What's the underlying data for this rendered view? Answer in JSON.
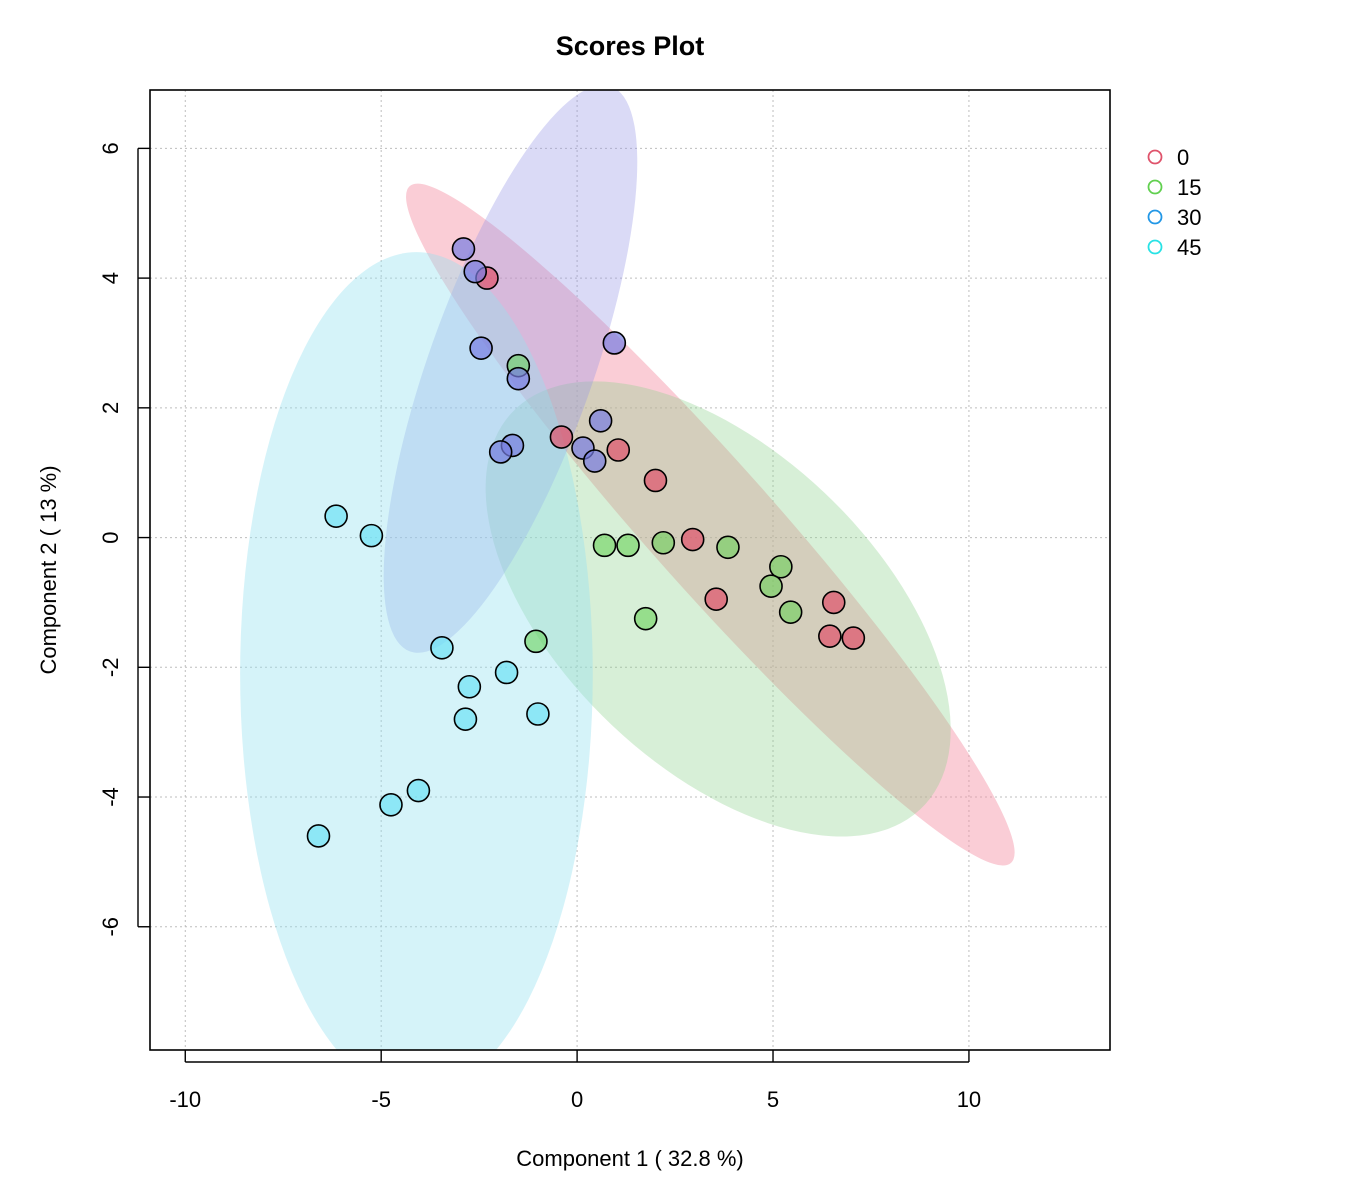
{
  "chart_data": {
    "type": "scatter",
    "title": "Scores Plot",
    "xlabel": "Component 1 ( 32.8 %)",
    "ylabel": "Component 2 ( 13 %)",
    "xlim": [
      -10.9,
      13.6
    ],
    "ylim": [
      -7.9,
      6.9
    ],
    "xticks": [
      -10,
      -5,
      0,
      5,
      10
    ],
    "yticks": [
      6,
      4,
      2,
      0,
      -2,
      -4,
      -6
    ],
    "grid": true,
    "legend_position": "top-right",
    "series": [
      {
        "name": "0",
        "color": "#DF536B",
        "fill": "rgba(223,83,107,0.7)",
        "ellipse": {
          "cx": 3.4,
          "cy": 0.2,
          "rx": 9.3,
          "ry": 1.2,
          "angle_deg": -33.7,
          "fill": "rgba(245,145,165,0.45)"
        },
        "points": [
          [
            -2.3,
            4.0
          ],
          [
            -0.4,
            1.55
          ],
          [
            1.05,
            1.35
          ],
          [
            2.0,
            0.88
          ],
          [
            2.95,
            -0.03
          ],
          [
            3.55,
            -0.95
          ],
          [
            6.55,
            -1.0
          ],
          [
            6.45,
            -1.52
          ],
          [
            7.05,
            -1.55
          ]
        ]
      },
      {
        "name": "15",
        "color": "#61D04F",
        "fill": "rgba(97,208,79,0.55)",
        "ellipse": {
          "cx": 3.6,
          "cy": -1.1,
          "rx": 6.3,
          "ry": 2.8,
          "angle_deg": -22,
          "fill": "rgba(140,210,140,0.35)"
        },
        "points": [
          [
            -1.5,
            2.65
          ],
          [
            0.7,
            -0.12
          ],
          [
            1.3,
            -0.12
          ],
          [
            2.2,
            -0.08
          ],
          [
            3.85,
            -0.15
          ],
          [
            5.2,
            -0.45
          ],
          [
            4.95,
            -0.75
          ],
          [
            5.45,
            -1.15
          ],
          [
            1.75,
            -1.25
          ],
          [
            -1.05,
            -1.6
          ]
        ]
      },
      {
        "name": "30",
        "color": "#2297E6",
        "fill": "rgba(120,125,225,0.7)",
        "ellipse": {
          "cx": -1.7,
          "cy": 2.6,
          "rx": 5.1,
          "ry": 1.9,
          "angle_deg": 56.4,
          "fill": "rgba(150,150,230,0.35)"
        },
        "points": [
          [
            -2.9,
            4.45
          ],
          [
            -2.6,
            4.1
          ],
          [
            -2.45,
            2.92
          ],
          [
            0.95,
            3.0
          ],
          [
            -1.5,
            2.45
          ],
          [
            0.6,
            1.8
          ],
          [
            -1.65,
            1.42
          ],
          [
            -1.95,
            1.32
          ],
          [
            0.15,
            1.38
          ],
          [
            0.45,
            1.18
          ]
        ]
      },
      {
        "name": "45",
        "color": "#28E2E5",
        "fill": "rgba(110,225,245,0.7)",
        "ellipse": {
          "cx": -4.1,
          "cy": -2.1,
          "rx": 4.5,
          "ry": 6.5,
          "angle_deg": 0,
          "fill": "rgba(150,225,240,0.4)"
        },
        "points": [
          [
            -6.15,
            0.33
          ],
          [
            -5.25,
            0.03
          ],
          [
            -3.45,
            -1.7
          ],
          [
            -1.8,
            -2.08
          ],
          [
            -2.75,
            -2.3
          ],
          [
            -2.85,
            -2.8
          ],
          [
            -1.0,
            -2.72
          ],
          [
            -4.05,
            -3.9
          ],
          [
            -4.75,
            -4.12
          ],
          [
            -6.6,
            -4.6
          ]
        ]
      }
    ]
  }
}
